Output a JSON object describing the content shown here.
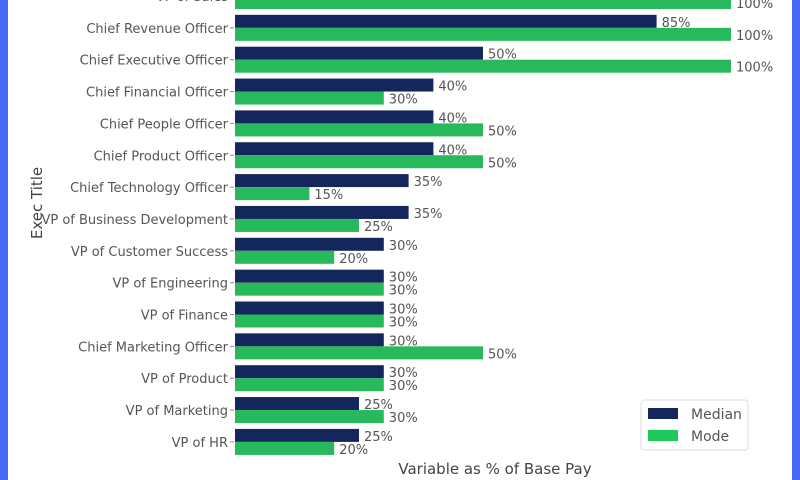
{
  "chart_data": {
    "type": "bar",
    "orientation": "horizontal",
    "xlabel": "Variable as % of Base Pay",
    "ylabel": "Exec Title",
    "xlim": [
      0,
      100
    ],
    "grid": false,
    "legend_position": "bottom-right",
    "categories": [
      "VP of Sales",
      "Chief Revenue Officer",
      "Chief Executive Officer",
      "Chief Financial Officer",
      "Chief People Officer",
      "Chief Product Officer",
      "Chief Technology Officer",
      "VP of Business Development",
      "VP of Customer Success",
      "VP of Engineering",
      "VP of Finance",
      "Chief Marketing Officer",
      "VP of Product",
      "VP of Marketing",
      "VP of HR"
    ],
    "series": [
      {
        "name": "Median",
        "color": "#14275c",
        "values": [
          null,
          85,
          50,
          40,
          40,
          40,
          35,
          35,
          30,
          30,
          30,
          30,
          30,
          25,
          25
        ]
      },
      {
        "name": "Mode",
        "color": "#27b95b",
        "values": [
          100,
          100,
          100,
          30,
          50,
          50,
          15,
          25,
          20,
          30,
          30,
          50,
          30,
          30,
          20
        ]
      }
    ],
    "value_suffix": "%"
  },
  "colors": {
    "frame": "#4a67f5",
    "legend_mode": "#1ecb5a"
  }
}
